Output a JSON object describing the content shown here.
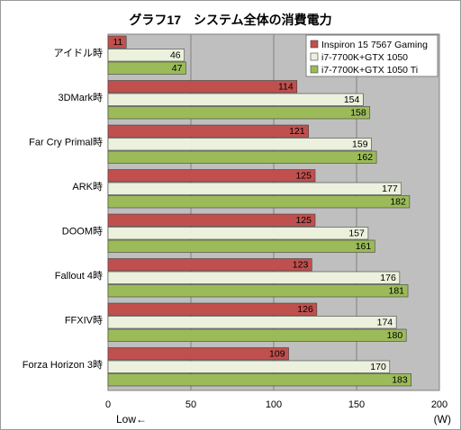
{
  "chart_data": {
    "type": "bar",
    "orientation": "horizontal",
    "title": "グラフ17　システム全体の消費電力",
    "categories": [
      "アイドル時",
      "3DMark時",
      "Far Cry Primal時",
      "ARK時",
      "DOOM時",
      "Fallout 4時",
      "FFXIV時",
      "Forza Horizon 3時"
    ],
    "series": [
      {
        "name": "Inspiron 15 7567 Gaming",
        "color": "#c0504d",
        "values": [
          11,
          114,
          121,
          125,
          125,
          123,
          126,
          109
        ]
      },
      {
        "name": "i7-7700K+GTX 1050",
        "color": "#ebf1dd",
        "values": [
          46,
          154,
          159,
          177,
          157,
          176,
          174,
          170
        ]
      },
      {
        "name": "i7-7700K+GTX 1050 Ti",
        "color": "#9bbb59",
        "values": [
          47,
          158,
          162,
          182,
          161,
          181,
          180,
          183
        ]
      }
    ],
    "xlim": [
      0,
      200
    ],
    "xticks": [
      0,
      50,
      100,
      150,
      200
    ],
    "xlabel": "(W)",
    "direction_note": "Low←",
    "grid": true,
    "legend_position": "top-right",
    "plot_background": "#bfbfbf"
  }
}
